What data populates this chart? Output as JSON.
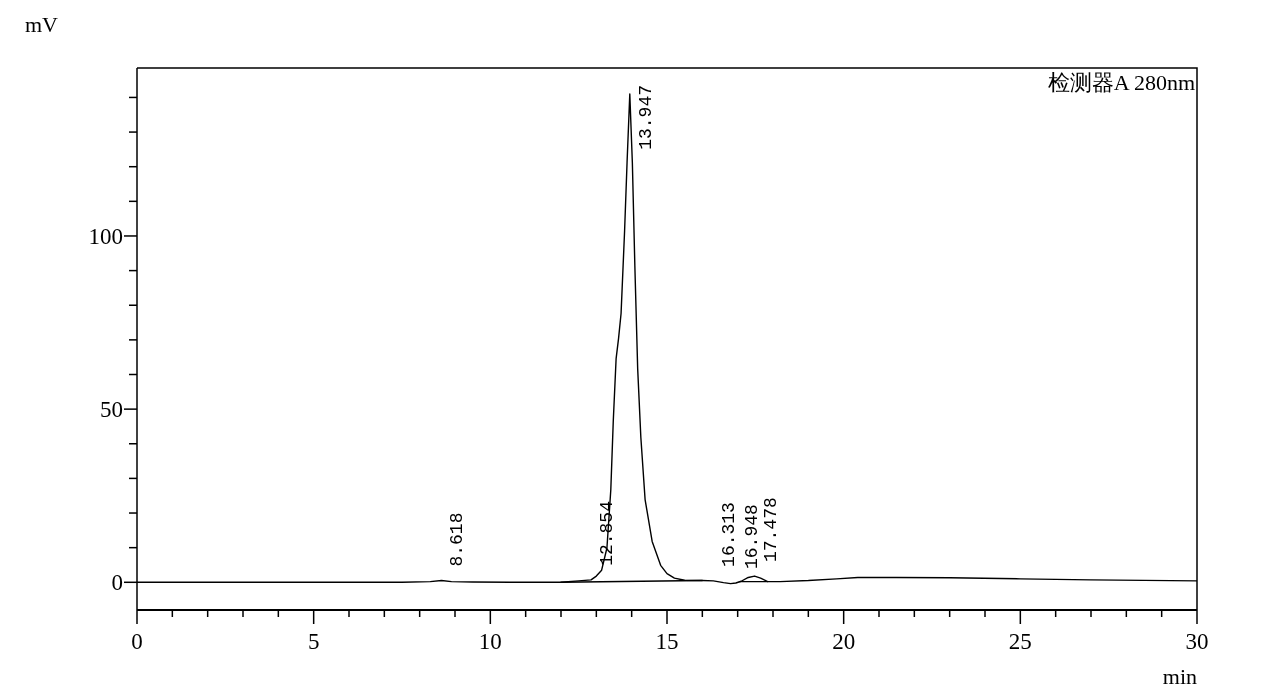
{
  "chart_data": {
    "type": "line",
    "xlabel": "min",
    "ylabel": "mV",
    "legend": "top right",
    "xlim": [
      0,
      30
    ],
    "ylim": [
      -8,
      148.5
    ],
    "xticks": [
      0,
      {
        "value": 1,
        "label": null
      },
      {
        "value": 2,
        "label": null
      },
      {
        "value": 3,
        "label": null
      },
      {
        "value": 4,
        "label": null
      },
      5,
      {
        "value": 6,
        "label": null
      },
      {
        "value": 7,
        "label": null
      },
      {
        "value": 8,
        "label": null
      },
      {
        "value": 9,
        "label": null
      },
      10,
      {
        "value": 11,
        "label": null
      },
      {
        "value": 12,
        "label": null
      },
      {
        "value": 13,
        "label": null
      },
      {
        "value": 14,
        "label": null
      },
      15,
      {
        "value": 16,
        "label": null
      },
      {
        "value": 17,
        "label": null
      },
      {
        "value": 18,
        "label": null
      },
      {
        "value": 19,
        "label": null
      },
      20,
      {
        "value": 21,
        "label": null
      },
      {
        "value": 22,
        "label": null
      },
      {
        "value": 23,
        "label": null
      },
      {
        "value": 24,
        "label": null
      },
      25,
      {
        "value": 26,
        "label": null
      },
      {
        "value": 27,
        "label": null
      },
      {
        "value": 28,
        "label": null
      },
      {
        "value": 29,
        "label": null
      },
      30
    ],
    "yticks": [
      0,
      {
        "value": 10,
        "label": null
      },
      {
        "value": 20,
        "label": null
      },
      {
        "value": 30,
        "label": null
      },
      {
        "value": 40,
        "label": null
      },
      50,
      {
        "value": 60,
        "label": null
      },
      {
        "value": 70,
        "label": null
      },
      {
        "value": 80,
        "label": null
      },
      {
        "value": 90,
        "label": null
      },
      100,
      {
        "value": 110,
        "label": null
      },
      {
        "value": 120,
        "label": null
      },
      {
        "value": 130,
        "label": null
      },
      {
        "value": 140,
        "label": null
      }
    ],
    "series": [
      {
        "name": "检测器A 280nm",
        "color": "#000000",
        "x": [
          0,
          2,
          4,
          6,
          7.5,
          8.3,
          8.618,
          8.9,
          9.5,
          11,
          12,
          12.5,
          12.85,
          13,
          13.15,
          13.3,
          13.41,
          13.48,
          13.56,
          13.63,
          13.7,
          13.8,
          13.87,
          13.947,
          14.02,
          14.09,
          14.17,
          14.26,
          14.38,
          14.58,
          14.82,
          15,
          15.21,
          15.5,
          16,
          16.313,
          16.6,
          16.8,
          16.948,
          17.1,
          17.3,
          17.478,
          17.65,
          17.85,
          18.2,
          19,
          19.8,
          20.4,
          21.5,
          23,
          25,
          27,
          30
        ],
        "values": [
          0,
          0,
          0,
          0,
          0,
          0.2,
          0.5,
          0.2,
          0.1,
          0,
          0,
          0.4,
          0.7,
          1.8,
          3.5,
          9.9,
          26.8,
          46.7,
          64.6,
          70.5,
          77.6,
          101.5,
          121.3,
          141,
          121,
          91.4,
          61.7,
          41.8,
          23.9,
          11.8,
          4.9,
          2.5,
          1.2,
          0.6,
          0.5,
          0.4,
          -0.1,
          -0.4,
          -0.2,
          0.3,
          1.4,
          1.8,
          1.2,
          0.2,
          0.2,
          0.5,
          1,
          1.4,
          1.4,
          1.3,
          1,
          0.7,
          0.4
        ]
      },
      {
        "color": "#000000",
        "x": [
          12,
          16
        ],
        "values": [
          0,
          0.5
        ]
      },
      {
        "color": "#000000",
        "x": [
          17.05,
          17.85
        ],
        "values": [
          0.2,
          0.2
        ]
      }
    ],
    "annotations": [
      {
        "text": "8.618",
        "x": 8.618,
        "y": 0.5
      },
      {
        "text": "12.854",
        "x": 12.854,
        "y": 0.7
      },
      {
        "text": "13.947",
        "x": 13.947,
        "y": 141
      },
      {
        "text": "16.313",
        "x": 16.313,
        "y": 0.4
      },
      {
        "text": "16.948",
        "x": 16.948,
        "y": -0.2
      },
      {
        "text": "17.478",
        "x": 17.478,
        "y": 1.8
      }
    ]
  }
}
